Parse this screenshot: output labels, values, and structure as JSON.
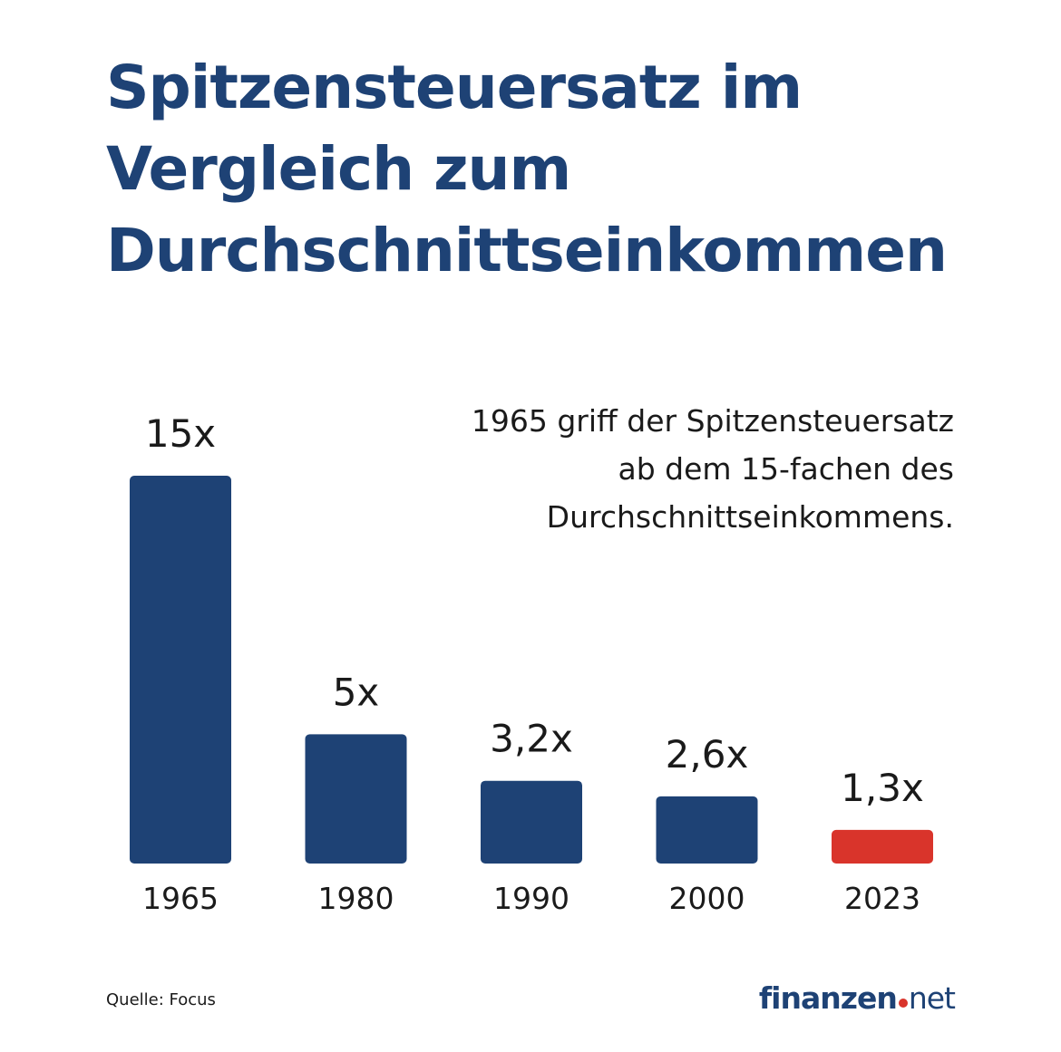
{
  "title_lines": [
    "Spitzensteuersatz im",
    "Vergleich zum",
    "Durchschnittseinkommen"
  ],
  "annotation_lines": [
    "1965 griff der Spitzensteuersatz",
    "ab dem 15-fachen des",
    "Durchschnittseinkommens."
  ],
  "source": "Quelle: Focus",
  "logo": {
    "main": "finanzen",
    "tld": "net"
  },
  "colors": {
    "primary": "#1e4275",
    "highlight": "#d9342b",
    "text": "#1a1a1a"
  },
  "chart_data": {
    "type": "bar",
    "categories": [
      "1965",
      "1980",
      "1990",
      "2000",
      "2023"
    ],
    "values": [
      15,
      5,
      3.2,
      2.6,
      1.3
    ],
    "value_labels": [
      "15x",
      "5x",
      "3,2x",
      "2,6x",
      "1,3x"
    ],
    "highlight_category": "2023",
    "title": "Spitzensteuersatz im Vergleich zum Durchschnittseinkommen",
    "xlabel": "",
    "ylabel": "",
    "ylim": [
      0,
      15
    ],
    "grid": false
  }
}
